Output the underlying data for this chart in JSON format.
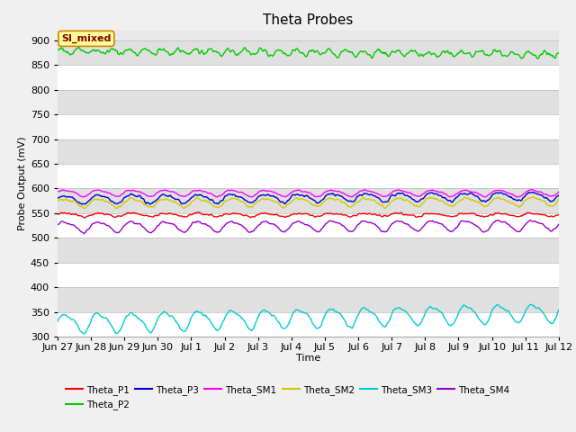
{
  "title": "Theta Probes",
  "xlabel": "Time",
  "ylabel": "Probe Output (mV)",
  "ylim": [
    300,
    920
  ],
  "yticks": [
    300,
    350,
    400,
    450,
    500,
    550,
    600,
    650,
    700,
    750,
    800,
    850,
    900
  ],
  "fig_bg_color": "#f0f0f0",
  "plot_bg_color": "#e8e8e8",
  "annotation_text": "SI_mixed",
  "annotation_bg": "#ffff99",
  "annotation_border": "#cc8800",
  "annotation_text_color": "#880000",
  "num_points": 600,
  "series": {
    "Theta_P1": {
      "color": "#ff0000",
      "mean": 547,
      "amp": 3,
      "period": 1.0,
      "noise": 1.5,
      "trend": 0
    },
    "Theta_P2": {
      "color": "#00cc00",
      "mean": 878,
      "amp": 5,
      "period": 0.5,
      "noise": 4.0,
      "trend": -6
    },
    "Theta_P3": {
      "color": "#0000cc",
      "mean": 578,
      "amp": 8,
      "period": 1.0,
      "noise": 2.0,
      "trend": 7
    },
    "Theta_SM1": {
      "color": "#ff00ff",
      "mean": 591,
      "amp": 6,
      "period": 1.0,
      "noise": 1.0,
      "trend": 0
    },
    "Theta_SM2": {
      "color": "#cccc00",
      "mean": 571,
      "amp": 8,
      "period": 1.0,
      "noise": 2.0,
      "trend": 3
    },
    "Theta_SM3": {
      "color": "#00cccc",
      "mean": 328,
      "amp": 18,
      "period": 1.0,
      "noise": 2.0,
      "trend": 22
    },
    "Theta_SM4": {
      "color": "#9900cc",
      "mean": 523,
      "amp": 10,
      "period": 1.0,
      "noise": 1.5,
      "trend": 3
    }
  },
  "x_tick_labels": [
    "Jun 27",
    "Jun 28",
    "Jun 29",
    "Jun 30",
    "Jul 1",
    "Jul 2",
    "Jul 3",
    "Jul 4",
    "Jul 5",
    "Jul 6",
    "Jul 7",
    "Jul 8",
    "Jul 9",
    "Jul 10",
    "Jul 11",
    "Jul 12"
  ],
  "x_tick_positions": [
    0,
    1,
    2,
    3,
    4,
    5,
    6,
    7,
    8,
    9,
    10,
    11,
    12,
    13,
    14,
    15
  ],
  "total_days": 15,
  "grid_band_colors": [
    "#ffffff",
    "#e0e0e0"
  ]
}
